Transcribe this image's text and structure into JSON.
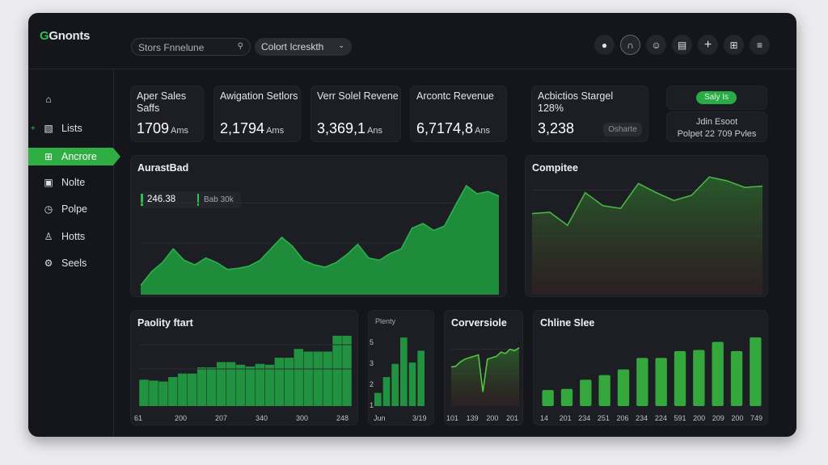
{
  "app": {
    "logo_mark": "G",
    "logo_text": "Gnonts"
  },
  "header": {
    "search_placeholder": "Stors  Fnnelune",
    "search_icon": "search-icon",
    "select_value": "Colort Icreskth",
    "icons": [
      "user-icon",
      "headset-icon",
      "chat-icon",
      "document-icon",
      "plus-icon",
      "grid-icon",
      "menu-icon"
    ]
  },
  "sidebar": {
    "items": [
      {
        "label": "",
        "icon": "home-icon"
      },
      {
        "label": "Lists",
        "icon": "list-icon"
      },
      {
        "label": "Ancrore",
        "icon": "chart-icon",
        "active": true
      },
      {
        "label": "Nolte",
        "icon": "clipboard-icon"
      },
      {
        "label": "Polpe",
        "icon": "clock-icon"
      },
      {
        "label": "Hotts",
        "icon": "user-icon"
      },
      {
        "label": "Seels",
        "icon": "settings-icon"
      }
    ]
  },
  "kpis": [
    {
      "title": "Aper Sales Saffs",
      "value": "1709",
      "unit": "Ams"
    },
    {
      "title": "Awigation Setlors",
      "value": "2,1794",
      "unit": "Ams"
    },
    {
      "title": "Verr Solel Revene",
      "value": "3,369,1",
      "unit": "Ans"
    },
    {
      "title": "Arcontc Revenue",
      "value": "6,7174,8",
      "unit": "Ans"
    },
    {
      "title": "Acbictios Stargel 128%",
      "value": "3,238",
      "button": "Osharte"
    }
  ],
  "status_card": {
    "badge": "Saly Is",
    "line1": "Jdin Esoot",
    "line2": "Polpet 22 709 Pvles"
  },
  "colors": {
    "accent": "#2fbf4f",
    "bg": "#15161b",
    "card": "#1d1e24"
  },
  "chart_data": [
    {
      "type": "area",
      "title": "AurastBad",
      "tag_value": "246.38",
      "tag_label": "Bab 30k",
      "values": [
        8,
        20,
        28,
        40,
        30,
        26,
        32,
        28,
        22,
        23,
        25,
        30,
        40,
        50,
        42,
        30,
        26,
        24,
        28,
        35,
        44,
        32,
        30,
        36,
        40,
        58,
        62,
        56,
        60,
        78,
        95,
        88,
        90,
        86
      ]
    },
    {
      "type": "line",
      "title": "Compitee",
      "values": [
        62,
        63,
        53,
        78,
        68,
        66,
        85,
        78,
        72,
        76,
        90,
        87,
        82,
        83
      ]
    },
    {
      "type": "bar",
      "title": "Paolity ftart",
      "x_labels": [
        "61",
        "200",
        "207",
        "340",
        "300",
        "248"
      ],
      "values": [
        30,
        29,
        28,
        33,
        37,
        37,
        44,
        44,
        50,
        50,
        47,
        45,
        48,
        47,
        55,
        55,
        65,
        62,
        62,
        62,
        80,
        80
      ]
    },
    {
      "type": "bar",
      "title": "Plenty",
      "y_ticks": [
        "5",
        "3",
        "2",
        "1"
      ],
      "x_labels": [
        "Jun",
        "3/19"
      ],
      "values": [
        1,
        2.2,
        3.2,
        5.2,
        3.3,
        4.2
      ]
    },
    {
      "type": "line",
      "title": "Corversiole",
      "x_labels": [
        "101",
        "139",
        "200",
        "201"
      ],
      "values": [
        55,
        56,
        62,
        66,
        68,
        70,
        72,
        20,
        66,
        68,
        70,
        76,
        74,
        80,
        78,
        82
      ]
    },
    {
      "type": "bar",
      "title": "Chline Slee",
      "x_labels": [
        "14",
        "201",
        "234",
        "251",
        "206",
        "234",
        "224",
        "591",
        "200",
        "209",
        "200",
        "749"
      ],
      "values": [
        14,
        15,
        23,
        27,
        32,
        42,
        42,
        48,
        49,
        56,
        48,
        60
      ]
    }
  ]
}
